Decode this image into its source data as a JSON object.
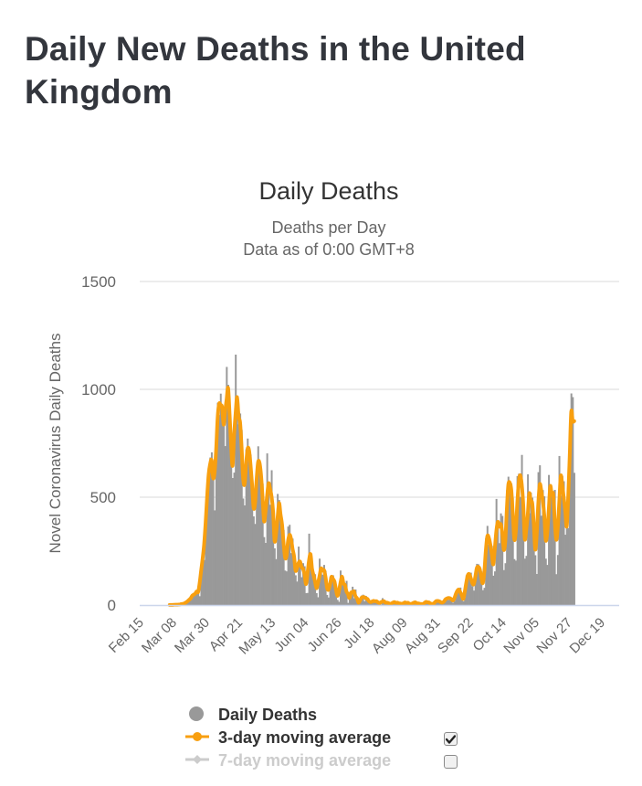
{
  "page": {
    "title": "Daily New Deaths in the United Kingdom"
  },
  "legend": {
    "items": [
      {
        "label": "Daily Deaths",
        "color": "#999999",
        "symbol": "circle",
        "has_checkbox": false
      },
      {
        "label": "3-day moving average",
        "color": "#f89f0f",
        "symbol": "circle-line",
        "has_checkbox": true,
        "checked": true
      },
      {
        "label": "7-day moving average",
        "color": "#cccccc",
        "symbol": "diamond-line",
        "has_checkbox": true,
        "checked": false
      }
    ]
  },
  "colors": {
    "bars": "#999999",
    "avg3": "#f89f0f",
    "avg7_disabled": "#cccccc",
    "grid": "#e6e6e6",
    "axis": "#ccd6eb",
    "title_text": "#33363d"
  },
  "chart_data": {
    "type": "bar",
    "title": "Daily Deaths",
    "subtitle": [
      "Deaths per Day",
      "Data as of 0:00 GMT+8"
    ],
    "xlabel": "",
    "ylabel": "Novel Coronavirus Daily Deaths",
    "ylim": [
      0,
      1500
    ],
    "yticks": [
      0,
      500,
      1000,
      1500
    ],
    "grid": true,
    "legend_position": "bottom",
    "x_start_date": "Feb 15",
    "x_days_total": 320,
    "xtick_labels": [
      "Feb 15",
      "Mar 08",
      "Mar 30",
      "Apr 21",
      "May 13",
      "Jun 04",
      "Jun 26",
      "Jul 18",
      "Aug 09",
      "Aug 31",
      "Sep 22",
      "Oct 14",
      "Nov 05",
      "Nov 27",
      "Dec 19"
    ],
    "xtick_interval_days": 22,
    "series": [
      {
        "name": "Daily Deaths",
        "kind": "column",
        "start_day": 20,
        "values": [
          1,
          0,
          1,
          1,
          2,
          2,
          1,
          3,
          5,
          7,
          5,
          14,
          19,
          21,
          33,
          40,
          56,
          48,
          54,
          87,
          41,
          180,
          260,
          209,
          381,
          563,
          569,
          684,
          708,
          621,
          439,
          786,
          938,
          881,
          980,
          917,
          854,
          737,
          1104,
          1021,
          893,
          734,
          589,
          614,
          1161,
          893,
          838,
          888,
          812,
          494,
          462,
          722,
          772,
          680,
          697,
          566,
          411,
          376,
          631,
          736,
          621,
          617,
          563,
          315,
          288,
          703,
          526,
          465,
          625,
          419,
          263,
          213,
          515,
          487,
          416,
          356,
          348,
          160,
          156,
          364,
          372,
          241,
          308,
          234,
          138,
          109,
          271,
          204,
          129,
          194,
          180,
          55,
          56,
          331,
          233,
          143,
          130,
          143,
          55,
          36,
          215,
          153,
          141,
          186,
          159,
          47,
          35,
          129,
          125,
          138,
          100,
          89,
          24,
          15,
          160,
          135,
          100,
          65,
          112,
          10,
          30,
          57,
          85,
          32,
          72,
          17,
          6,
          10,
          44,
          48,
          18,
          42,
          31,
          11,
          10,
          20,
          18,
          20,
          14,
          20,
          4,
          3,
          32,
          14,
          8,
          12,
          14,
          1,
          2,
          19,
          12,
          11,
          7,
          15,
          2,
          4,
          12,
          9,
          15,
          6,
          11,
          2,
          3,
          18,
          12,
          8,
          3,
          12,
          2,
          1,
          11,
          16,
          17,
          6,
          14,
          1,
          2,
          14,
          22,
          20,
          15,
          17,
          6,
          11,
          30,
          37,
          24,
          37,
          34,
          11,
          18,
          65,
          71,
          63,
          81,
          33,
          17,
          35,
          138,
          143,
          136,
          150,
          87,
          67,
          136,
          191,
          189,
          151,
          156,
          69,
          80,
          310,
          367,
          280,
          290,
          274,
          136,
          156,
          492,
          378,
          287,
          425,
          413,
          162,
          194,
          533,
          595,
          542,
          563,
          498,
          213,
          206,
          598,
          609,
          501,
          696,
          479,
          215,
          228,
          606,
          426,
          521,
          498,
          397,
          231,
          144,
          616,
          648,
          414,
          533,
          504,
          215,
          186,
          603,
          533,
          516,
          489,
          534,
          143,
          232,
          691,
          506,
          598,
          574,
          326,
          410,
          357,
          744,
          981,
          964,
          613
        ],
        "note": "values estimated from bar heights; day index measured from Feb 15"
      },
      {
        "name": "3-day moving average",
        "kind": "line",
        "derived_from": "Daily Deaths",
        "window": 3
      }
    ]
  }
}
